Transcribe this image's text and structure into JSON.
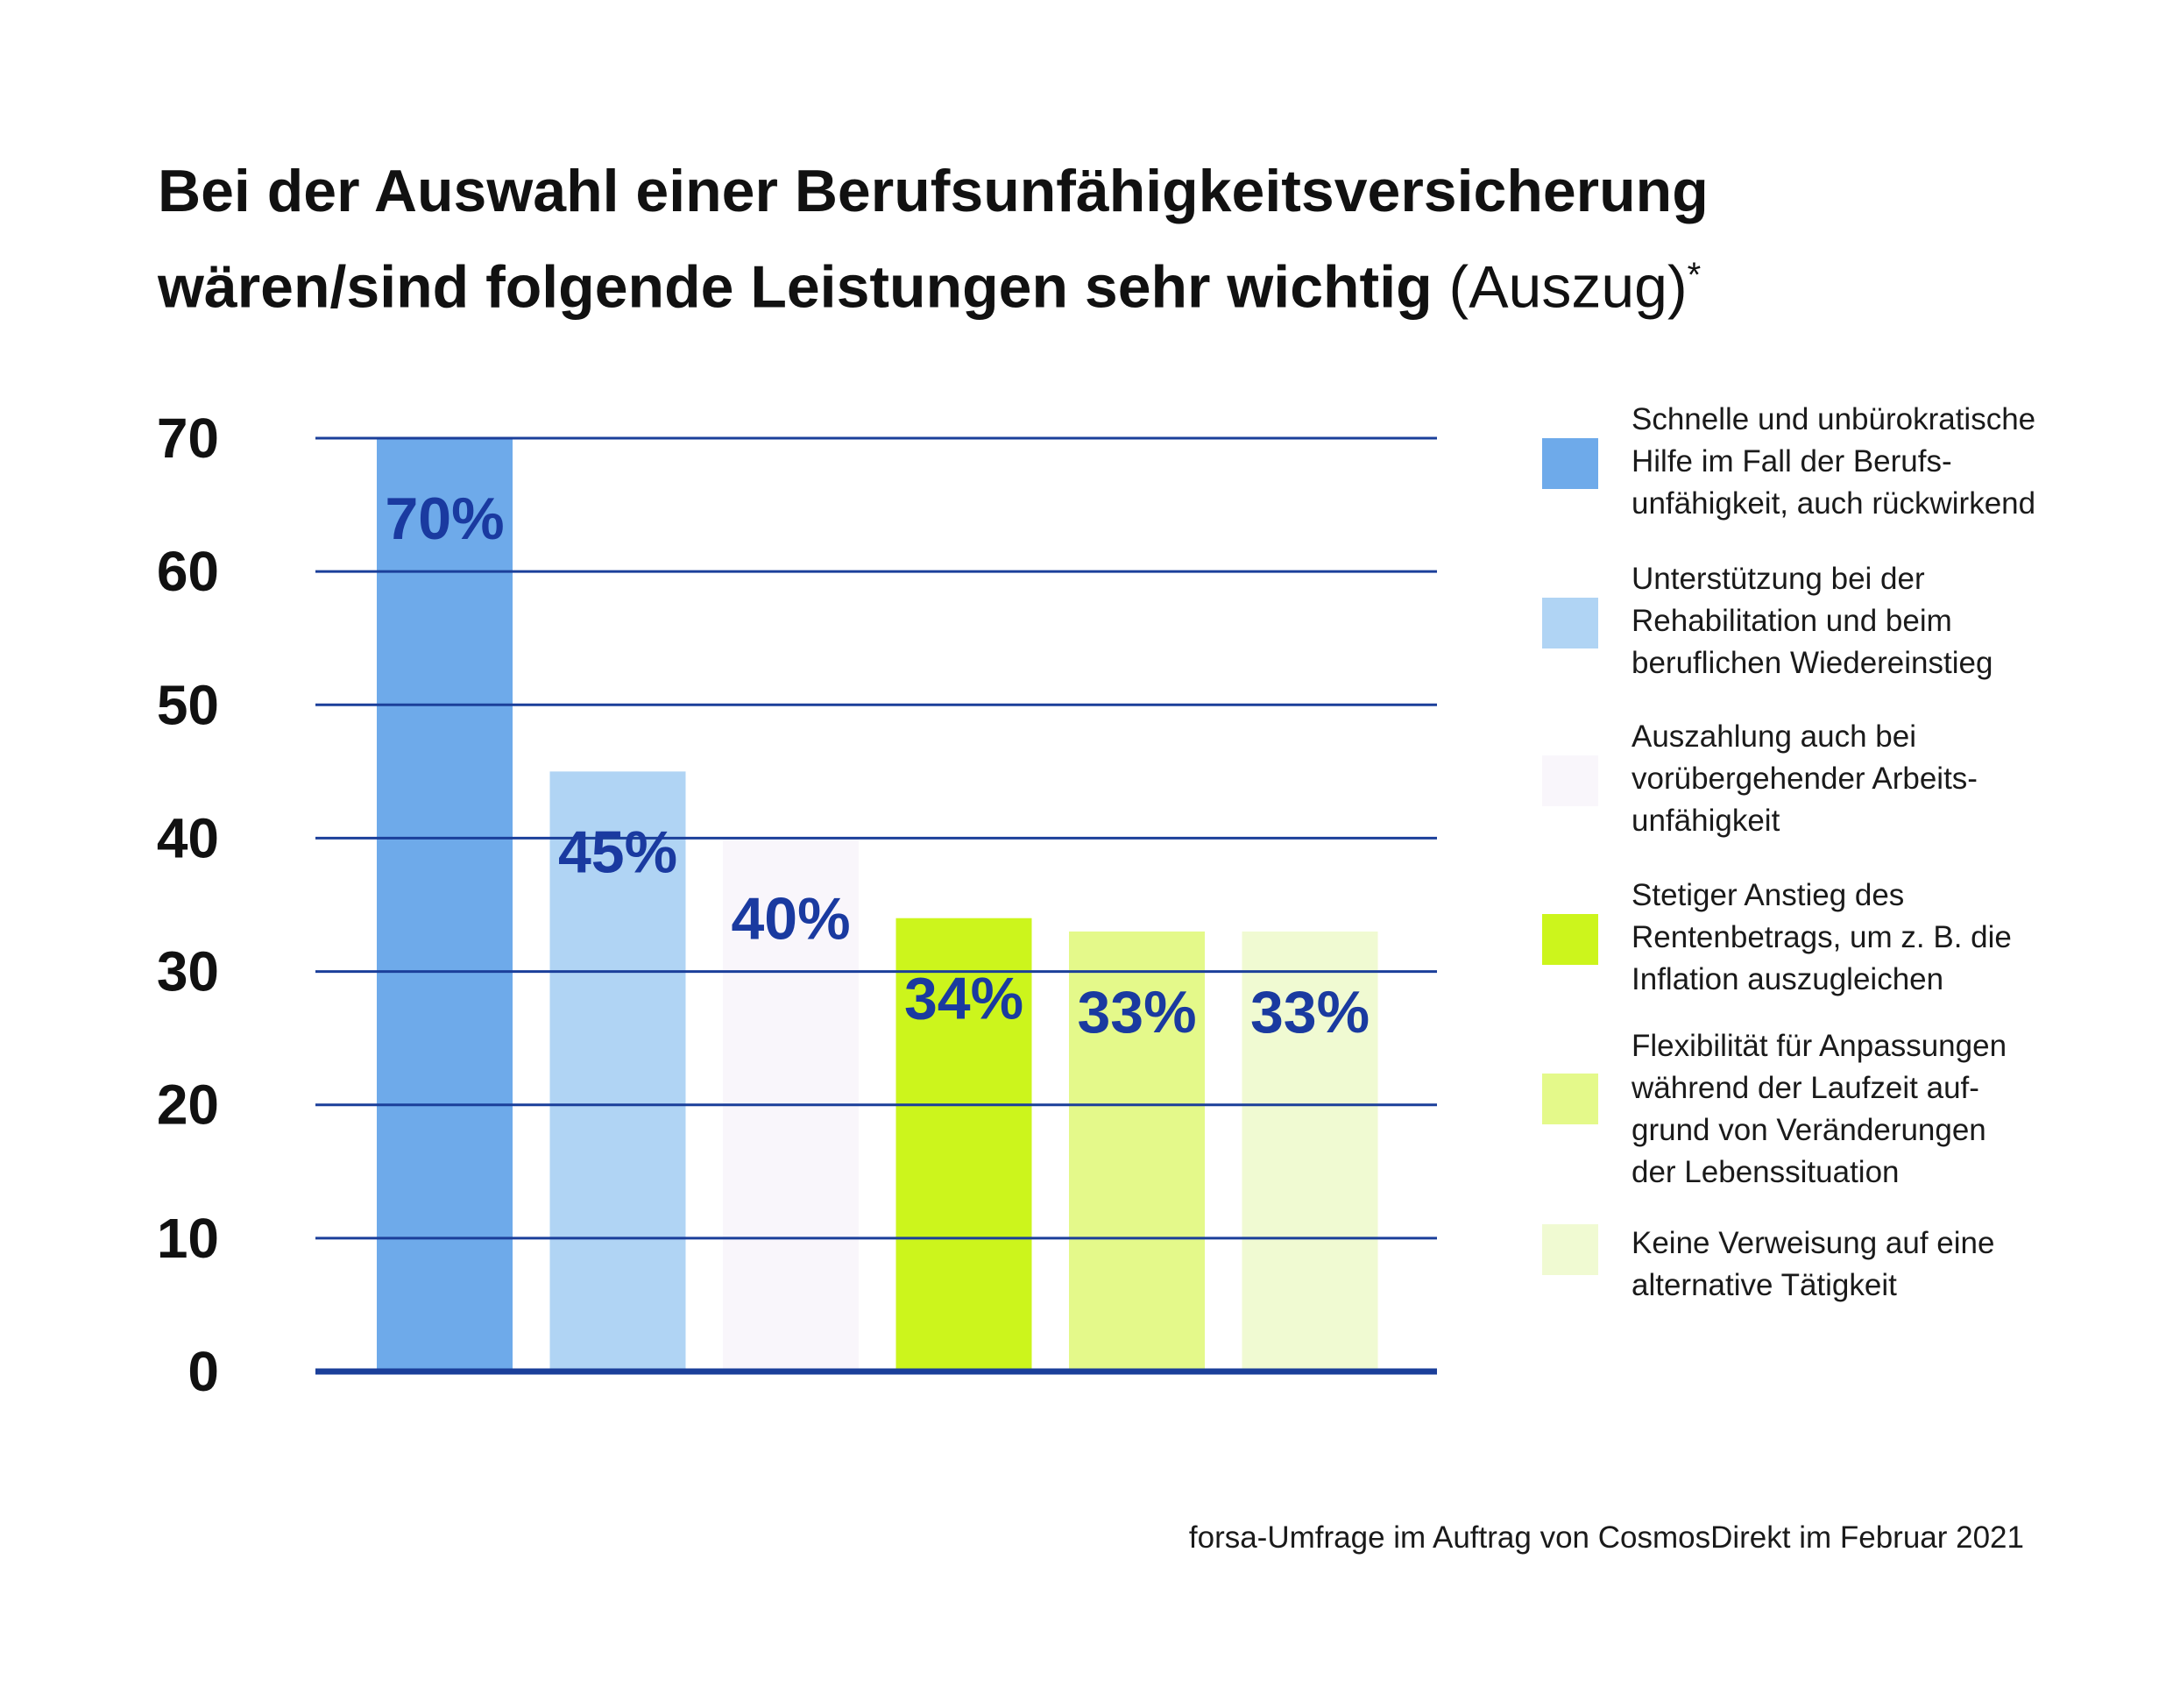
{
  "title": {
    "line1": "Bei der Auswahl einer Berufsunfähigkeitsversicherung",
    "line2_bold": "wären/sind folgende Leistungen sehr wichtig",
    "line2_light": "(Auszug)",
    "footnote_mark": "*"
  },
  "source": "forsa-Umfrage im Auftrag von CosmosDirekt im Februar 2021",
  "chart_data": {
    "type": "bar",
    "title": "Bei der Auswahl einer Berufsunfähigkeitsversicherung wären/sind folgende Leistungen sehr wichtig (Auszug)*",
    "ylim": [
      0,
      70
    ],
    "yticks": [
      0,
      10,
      20,
      30,
      40,
      50,
      60,
      70
    ],
    "grid": true,
    "legend_position": "right",
    "categories": [
      "Schnelle und unbürokratische Hilfe im Fall der Berufs-unfähigkeit, auch rückwirkend",
      "Unterstützung bei der Rehabilitation und beim beruflichen Wiedereinstieg",
      "Auszahlung auch bei vorübergehender Arbeits-unfähigkeit",
      "Stetiger Anstieg des Rentenbetrags, um z. B. die Inflation auszugleichen",
      "Flexibilität für Anpassungen während der Laufzeit auf-grund von Veränderungen der Lebenssituation",
      "Keine Verweisung auf eine alternative Tätigkeit"
    ],
    "values": [
      70,
      45,
      40,
      34,
      33,
      33
    ],
    "data_labels": [
      "70%",
      "45%",
      "40%",
      "34%",
      "33%",
      "33%"
    ],
    "colors": [
      "#6eaaea",
      "#b0d4f4",
      "#f9f6fb",
      "#ccf51c",
      "#e4f98a",
      "#f0fad2"
    ],
    "label_color": "#1a3aa0",
    "grid_color": "#1b3f9a"
  },
  "legend": [
    {
      "text": "Schnelle und unbürokratische\nHilfe im Fall der Berufs-\nunfähigkeit, auch rückwirkend"
    },
    {
      "text": "Unterstützung bei der\nRehabilitation und beim\nberuflichen Wiedereinstieg"
    },
    {
      "text": "Auszahlung auch bei\nvorübergehender Arbeits-\nunfähigkeit"
    },
    {
      "text": "Stetiger Anstieg des\nRentenbetrags, um z. B. die\nInflation auszugleichen"
    },
    {
      "text": "Flexibilität für Anpassungen\nwährend der Laufzeit auf-\ngrund von Veränderungen\nder Lebenssituation"
    },
    {
      "text": "Keine Verweisung auf eine\nalternative Tätigkeit"
    }
  ]
}
